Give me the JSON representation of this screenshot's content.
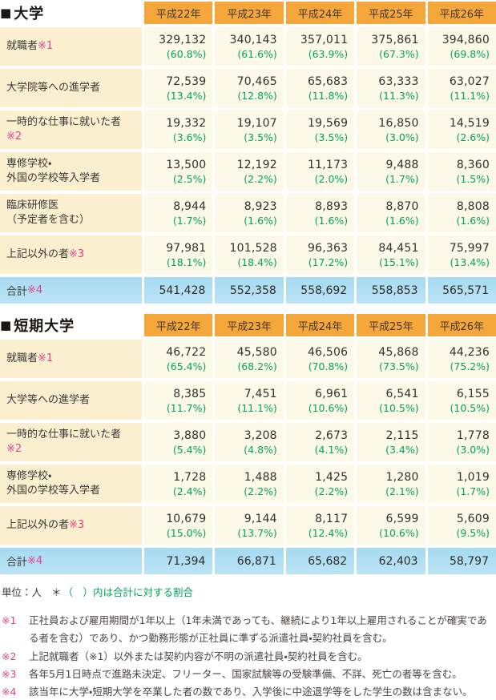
{
  "columns": [
    "平成22年",
    "平成23年",
    "平成24年",
    "平成25年",
    "平成26年"
  ],
  "tables": [
    {
      "id": "university",
      "bullet": "■",
      "title": "大学",
      "rows": [
        {
          "label": "就職者",
          "marker": "※1",
          "marker_break": false,
          "values": [
            "329,132",
            "340,143",
            "357,011",
            "375,861",
            "394,860"
          ],
          "percents": [
            "(60.8%)",
            "(61.6%)",
            "(63.9%)",
            "(67.3%)",
            "(69.8%)"
          ]
        },
        {
          "label": "大学院等への進学者",
          "marker": "",
          "marker_break": false,
          "values": [
            "72,539",
            "70,465",
            "65,683",
            "63,333",
            "63,027"
          ],
          "percents": [
            "(13.4%)",
            "(12.8%)",
            "(11.8%)",
            "(11.3%)",
            "(11.1%)"
          ]
        },
        {
          "label": "一時的な仕事に就いた者",
          "marker": "※2",
          "marker_break": true,
          "values": [
            "19,332",
            "19,107",
            "19,569",
            "16,850",
            "14,519"
          ],
          "percents": [
            "(3.6%)",
            "(3.5%)",
            "(3.5%)",
            "(3.0%)",
            "(2.6%)"
          ]
        },
        {
          "label": "専修学校・\n外国の学校等入学者",
          "marker": "",
          "marker_break": false,
          "values": [
            "13,500",
            "12,192",
            "11,173",
            "9,488",
            "8,360"
          ],
          "percents": [
            "(2.5%)",
            "(2.2%)",
            "(2.0%)",
            "(1.7%)",
            "(1.5%)"
          ]
        },
        {
          "label": "臨床研修医\n（予定者を含む）",
          "marker": "",
          "marker_break": false,
          "values": [
            "8,944",
            "8,923",
            "8,893",
            "8,870",
            "8,808"
          ],
          "percents": [
            "(1.7%)",
            "(1.6%)",
            "(1.6%)",
            "(1.6%)",
            "(1.6%)"
          ]
        },
        {
          "label": "上記以外の者",
          "marker": "※3",
          "marker_break": false,
          "values": [
            "97,981",
            "101,528",
            "96,363",
            "84,451",
            "75,997"
          ],
          "percents": [
            "(18.1%)",
            "(18.4%)",
            "(17.2%)",
            "(15.1%)",
            "(13.4%)"
          ]
        }
      ],
      "total": {
        "label": "合計",
        "marker": "※4",
        "values": [
          "541,428",
          "552,358",
          "558,692",
          "558,853",
          "565,571"
        ]
      }
    },
    {
      "id": "junior-college",
      "bullet": "■",
      "title": "短期大学",
      "rows": [
        {
          "label": "就職者",
          "marker": "※1",
          "marker_break": false,
          "values": [
            "46,722",
            "45,580",
            "46,506",
            "45,868",
            "44,236"
          ],
          "percents": [
            "(65.4%)",
            "(68.2%)",
            "(70.8%)",
            "(73.5%)",
            "(75.2%)"
          ]
        },
        {
          "label": "大学等への進学者",
          "marker": "",
          "marker_break": false,
          "values": [
            "8,385",
            "7,451",
            "6,961",
            "6,541",
            "6,155"
          ],
          "percents": [
            "(11.7%)",
            "(11.1%)",
            "(10.6%)",
            "(10.5%)",
            "(10.5%)"
          ]
        },
        {
          "label": "一時的な仕事に就いた者",
          "marker": "※2",
          "marker_break": true,
          "values": [
            "3,880",
            "3,208",
            "2,673",
            "2,115",
            "1,778"
          ],
          "percents": [
            "(5.4%)",
            "(4.8%)",
            "(4.1%)",
            "(3.4%)",
            "(3.0%)"
          ]
        },
        {
          "label": "専修学校・\n外国の学校等入学者",
          "marker": "",
          "marker_break": false,
          "values": [
            "1,728",
            "1,488",
            "1,425",
            "1,280",
            "1,019"
          ],
          "percents": [
            "(2.4%)",
            "(2.2%)",
            "(2.2%)",
            "(2.1%)",
            "(1.7%)"
          ]
        },
        {
          "label": "上記以外の者",
          "marker": "※3",
          "marker_break": false,
          "values": [
            "10,679",
            "9,144",
            "8,117",
            "6,599",
            "5,609"
          ],
          "percents": [
            "(15.0%)",
            "(13.7%)",
            "(12.4%)",
            "(10.6%)",
            "(9.5%)"
          ]
        }
      ],
      "total": {
        "label": "合計",
        "marker": "※4",
        "values": [
          "71,394",
          "66,871",
          "65,682",
          "62,403",
          "58,797"
        ]
      }
    }
  ],
  "unit": {
    "label": "単位：人",
    "star": "＊",
    "note": "（　）内は合計に対する割合"
  },
  "footnotes": [
    {
      "marker": "※1",
      "text": "正社員および雇用期間が1年以上（1年未満であっても、継続により1年以上雇用されることが確実である者を含む）であり、かつ勤務形態が正社員に準ずる派遣社員・契約社員を含む。"
    },
    {
      "marker": "※2",
      "text": "上記就職者（※1）以外または契約内容が不明の派遣社員・契約社員を含む。"
    },
    {
      "marker": "※3",
      "text": "各年5月1日時点で進路未決定、フリーター、国家試験等の受験準備、不詳、死亡の者等を含む。"
    },
    {
      "marker": "※4",
      "text": "該当年に大学・短期大学を卒業した者の数であり、入学後に中途退学等をした学生の数は含まない。"
    }
  ],
  "colors": {
    "header_bg": "#f6a73c",
    "label_bg": "#faf0cf",
    "cell_bg": "#fdf9e8",
    "total_bg": "#a6daf1",
    "percent_green": "#00a557",
    "marker_pink": "#e73e8c",
    "text_dark": "#34302d"
  }
}
